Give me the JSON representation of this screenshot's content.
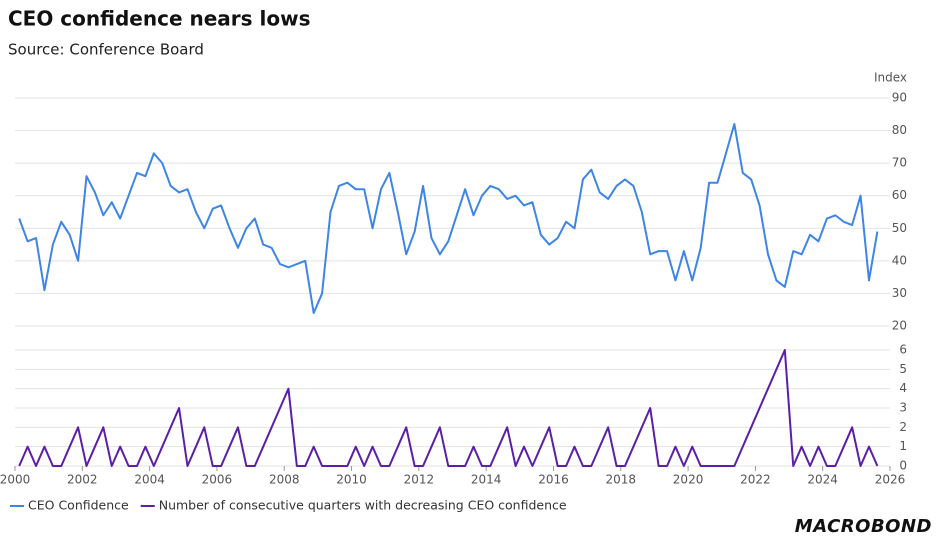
{
  "chart_data": [
    {
      "type": "line",
      "title": "CEO confidence nears lows",
      "subtitle": "Source: Conference Board",
      "y_label": "Index",
      "x": [
        2000.125,
        2000.375,
        2000.625,
        2000.875,
        2001.125,
        2001.375,
        2001.625,
        2001.875,
        2002.125,
        2002.375,
        2002.625,
        2002.875,
        2003.125,
        2003.375,
        2003.625,
        2003.875,
        2004.125,
        2004.375,
        2004.625,
        2004.875,
        2005.125,
        2005.375,
        2005.625,
        2005.875,
        2006.125,
        2006.375,
        2006.625,
        2006.875,
        2007.125,
        2007.375,
        2007.625,
        2007.875,
        2008.125,
        2008.375,
        2008.625,
        2008.875,
        2009.125,
        2009.375,
        2009.625,
        2009.875,
        2010.125,
        2010.375,
        2010.625,
        2010.875,
        2011.125,
        2011.375,
        2011.625,
        2011.875,
        2012.125,
        2012.375,
        2012.625,
        2012.875,
        2013.125,
        2013.375,
        2013.625,
        2013.875,
        2014.125,
        2014.375,
        2014.625,
        2014.875,
        2015.125,
        2015.375,
        2015.625,
        2015.875,
        2016.125,
        2016.375,
        2016.625,
        2016.875,
        2017.125,
        2017.375,
        2017.625,
        2017.875,
        2018.125,
        2018.375,
        2018.625,
        2018.875,
        2019.125,
        2019.375,
        2019.625,
        2019.875,
        2020.125,
        2020.375,
        2020.625,
        2020.875,
        2021.125,
        2021.375,
        2021.625,
        2021.875,
        2022.125,
        2022.375,
        2022.625,
        2022.875,
        2023.125,
        2023.375,
        2023.625,
        2023.875,
        2024.125,
        2024.375,
        2024.625,
        2024.875,
        2025.125,
        2025.375,
        2025.625
      ],
      "series": [
        {
          "name": "CEO Confidence",
          "color": "#3d85e6",
          "values": [
            53,
            46,
            47,
            31,
            45,
            52,
            48,
            40,
            66,
            61,
            54,
            58,
            53,
            60,
            67,
            66,
            73,
            70,
            63,
            61,
            62,
            55,
            50,
            56,
            57,
            50,
            44,
            50,
            53,
            45,
            44,
            39,
            38,
            39,
            40,
            24,
            30,
            55,
            63,
            64,
            62,
            62,
            50,
            62,
            67,
            55,
            42,
            49,
            63,
            47,
            42,
            46,
            54,
            62,
            54,
            60,
            63,
            62,
            59,
            60,
            57,
            58,
            48,
            45,
            47,
            52,
            50,
            65,
            68,
            61,
            59,
            63,
            65,
            63,
            55,
            42,
            43,
            43,
            34,
            43,
            34,
            44,
            64,
            64,
            73,
            82,
            67,
            65,
            57,
            42,
            34,
            32,
            43,
            42,
            48,
            46,
            53,
            54,
            52,
            51,
            60,
            34,
            49
          ]
        }
      ],
      "xlim": [
        2000,
        2026
      ],
      "ylim": [
        20,
        90
      ],
      "yticks": [
        20,
        30,
        40,
        50,
        60,
        70,
        80,
        90
      ],
      "grid": true
    },
    {
      "type": "line",
      "x": [
        2000.125,
        2000.375,
        2000.625,
        2000.875,
        2001.125,
        2001.375,
        2001.625,
        2001.875,
        2002.125,
        2002.375,
        2002.625,
        2002.875,
        2003.125,
        2003.375,
        2003.625,
        2003.875,
        2004.125,
        2004.375,
        2004.625,
        2004.875,
        2005.125,
        2005.375,
        2005.625,
        2005.875,
        2006.125,
        2006.375,
        2006.625,
        2006.875,
        2007.125,
        2007.375,
        2007.625,
        2007.875,
        2008.125,
        2008.375,
        2008.625,
        2008.875,
        2009.125,
        2009.375,
        2009.625,
        2009.875,
        2010.125,
        2010.375,
        2010.625,
        2010.875,
        2011.125,
        2011.375,
        2011.625,
        2011.875,
        2012.125,
        2012.375,
        2012.625,
        2012.875,
        2013.125,
        2013.375,
        2013.625,
        2013.875,
        2014.125,
        2014.375,
        2014.625,
        2014.875,
        2015.125,
        2015.375,
        2015.625,
        2015.875,
        2016.125,
        2016.375,
        2016.625,
        2016.875,
        2017.125,
        2017.375,
        2017.625,
        2017.875,
        2018.125,
        2018.375,
        2018.625,
        2018.875,
        2019.125,
        2019.375,
        2019.625,
        2019.875,
        2020.125,
        2020.375,
        2020.625,
        2020.875,
        2021.125,
        2021.375,
        2021.625,
        2021.875,
        2022.125,
        2022.375,
        2022.625,
        2022.875,
        2023.125,
        2023.375,
        2023.625,
        2023.875,
        2024.125,
        2024.375,
        2024.625,
        2024.875,
        2025.125,
        2025.375,
        2025.625
      ],
      "series": [
        {
          "name": "Number of consecutive quarters with decreasing CEO confidence",
          "color": "#5b1fa8",
          "values": [
            0,
            1,
            0,
            1,
            0,
            0,
            1,
            2,
            0,
            1,
            2,
            0,
            1,
            0,
            0,
            1,
            0,
            1,
            2,
            3,
            0,
            1,
            2,
            0,
            0,
            1,
            2,
            0,
            0,
            1,
            2,
            3,
            4,
            0,
            0,
            1,
            0,
            0,
            0,
            0,
            1,
            0,
            1,
            0,
            0,
            1,
            2,
            0,
            0,
            1,
            2,
            0,
            0,
            0,
            1,
            0,
            0,
            1,
            2,
            0,
            1,
            0,
            1,
            2,
            0,
            0,
            1,
            0,
            0,
            1,
            2,
            0,
            0,
            1,
            2,
            3,
            0,
            0,
            1,
            0,
            1,
            0,
            0,
            0,
            0,
            0,
            1,
            2,
            3,
            4,
            5,
            6,
            0,
            1,
            0,
            1,
            0,
            0,
            1,
            2,
            0,
            1,
            0
          ]
        }
      ],
      "xlim": [
        2000,
        2026
      ],
      "ylim": [
        0,
        6
      ],
      "yticks": [
        0,
        1,
        2,
        3,
        4,
        5,
        6
      ],
      "xticks": [
        2000,
        2002,
        2004,
        2006,
        2008,
        2010,
        2012,
        2014,
        2016,
        2018,
        2020,
        2022,
        2024,
        2026
      ],
      "grid": true
    }
  ],
  "logo": "MACROBOND"
}
